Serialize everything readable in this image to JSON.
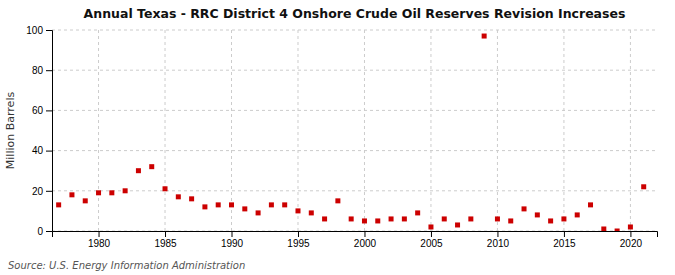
{
  "chart_data": {
    "type": "scatter",
    "title": "Annual Texas - RRC District 4 Onshore Crude Oil Reserves Revision Increases",
    "ylabel": "Million Barrels",
    "annotation": "Source: U.S. Energy Information Administration",
    "x": [
      1977,
      1978,
      1979,
      1980,
      1981,
      1982,
      1983,
      1984,
      1985,
      1986,
      1987,
      1988,
      1989,
      1990,
      1991,
      1992,
      1993,
      1994,
      1995,
      1996,
      1997,
      1998,
      1999,
      2000,
      2001,
      2002,
      2003,
      2004,
      2005,
      2006,
      2007,
      2008,
      2009,
      2010,
      2011,
      2012,
      2013,
      2014,
      2015,
      2016,
      2017,
      2018,
      2019,
      2020,
      2021
    ],
    "values": [
      13,
      18,
      15,
      19,
      19,
      20,
      30,
      32,
      21,
      17,
      16,
      12,
      13,
      13,
      11,
      9,
      13,
      13,
      10,
      9,
      6,
      15,
      6,
      5,
      5,
      6,
      6,
      9,
      2,
      6,
      3,
      6,
      97,
      6,
      5,
      11,
      8,
      5,
      6,
      8,
      13,
      1,
      0,
      2,
      22
    ],
    "color": "#CC0000",
    "marker": "square",
    "xlim": [
      1976.5,
      2022
    ],
    "ylim": [
      0,
      100
    ],
    "xticks": [
      1980,
      1985,
      1990,
      1995,
      2000,
      2005,
      2010,
      2015,
      2020
    ],
    "yticks": [
      0,
      20,
      40,
      60,
      80,
      100
    ],
    "grid": true
  }
}
